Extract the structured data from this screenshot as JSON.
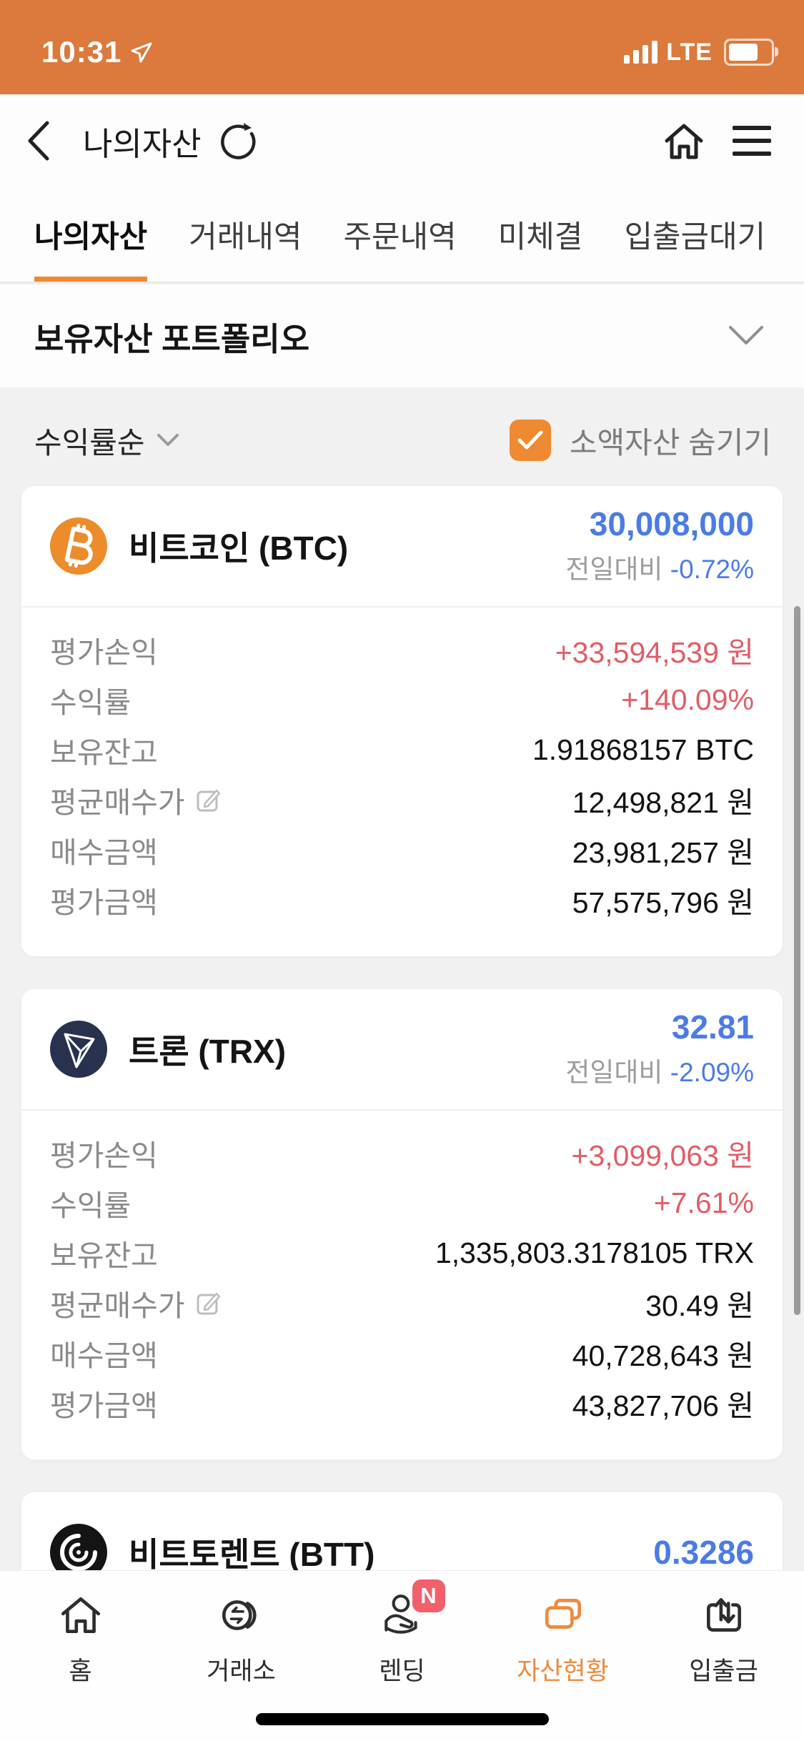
{
  "status_bar": {
    "time": "10:31",
    "network": "LTE",
    "battery_fill": "62%"
  },
  "nav_bar": {
    "title": "나의자산"
  },
  "tabs": [
    {
      "label": "나의자산",
      "active": true
    },
    {
      "label": "거래내역",
      "active": false
    },
    {
      "label": "주문내역",
      "active": false
    },
    {
      "label": "미체결",
      "active": false
    },
    {
      "label": "입출금대기",
      "active": false
    }
  ],
  "portfolio": {
    "title": "보유자산 포트폴리오"
  },
  "filter": {
    "sort_label": "수익률순",
    "hide_small_label": "소액자산 숨기기",
    "hide_small_checked": true
  },
  "assets": [
    {
      "name": "비트코인 (BTC)",
      "icon": "btc",
      "icon_bg": "#EC8C2A",
      "price": "30,008,000",
      "change_label": "전일대비",
      "change_value": "-0.72%",
      "rows": [
        {
          "label": "평가손익",
          "value": "+33,594,539 원",
          "color": "red",
          "editable": false
        },
        {
          "label": "수익률",
          "value": "+140.09%",
          "color": "red",
          "editable": false
        },
        {
          "label": "보유잔고",
          "value": "1.91868157 BTC",
          "color": "dark",
          "editable": false
        },
        {
          "label": "평균매수가",
          "value": "12,498,821 원",
          "color": "dark",
          "editable": true
        },
        {
          "label": "매수금액",
          "value": "23,981,257 원",
          "color": "dark",
          "editable": false
        },
        {
          "label": "평가금액",
          "value": "57,575,796 원",
          "color": "dark",
          "editable": false
        }
      ]
    },
    {
      "name": "트론 (TRX)",
      "icon": "trx",
      "icon_bg": "#28324F",
      "price": "32.81",
      "change_label": "전일대비",
      "change_value": "-2.09%",
      "rows": [
        {
          "label": "평가손익",
          "value": "+3,099,063 원",
          "color": "red",
          "editable": false
        },
        {
          "label": "수익률",
          "value": "+7.61%",
          "color": "red",
          "editable": false
        },
        {
          "label": "보유잔고",
          "value": "1,335,803.3178105 TRX",
          "color": "dark",
          "editable": false
        },
        {
          "label": "평균매수가",
          "value": "30.49 원",
          "color": "dark",
          "editable": true
        },
        {
          "label": "매수금액",
          "value": "40,728,643 원",
          "color": "dark",
          "editable": false
        },
        {
          "label": "평가금액",
          "value": "43,827,706 원",
          "color": "dark",
          "editable": false
        }
      ]
    },
    {
      "name": "비트토렌트 (BTT)",
      "icon": "btt",
      "icon_bg": "#141414",
      "price": "0.3286",
      "change_label": null,
      "change_value": null,
      "rows": []
    }
  ],
  "tab_bar": [
    {
      "label": "홈",
      "icon": "home",
      "active": false,
      "badge": null
    },
    {
      "label": "거래소",
      "icon": "exchange",
      "active": false,
      "badge": null
    },
    {
      "label": "렌딩",
      "icon": "lending",
      "active": false,
      "badge": "N"
    },
    {
      "label": "자산현황",
      "icon": "assets",
      "active": true,
      "badge": null
    },
    {
      "label": "입출금",
      "icon": "deposit",
      "active": false,
      "badge": null
    }
  ],
  "colors": {
    "status_orange": "#DB7A3C",
    "accent_orange": "#EE8A31",
    "price_blue": "#4B7BE5",
    "gain_red": "#E25C64",
    "badge_red": "#F2606B"
  }
}
